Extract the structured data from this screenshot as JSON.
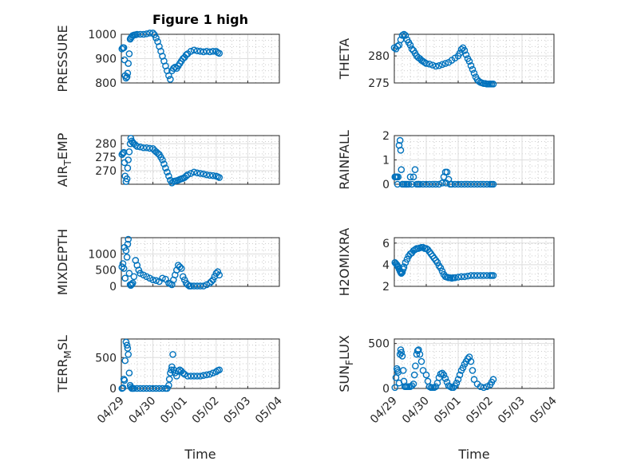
{
  "figure": {
    "title": "Figure 1 high",
    "marker_color": "#0072BD",
    "grid": "major and minor",
    "x_axis_label": "Time",
    "x_ticks": [
      "04/29",
      "04/30",
      "05/01",
      "05/02",
      "05/03",
      "05/04"
    ]
  },
  "chart_data": [
    {
      "id": "pressure",
      "type": "scatter",
      "ylabel": "PRESSURE",
      "ylim": [
        800,
        1000
      ],
      "yticks": [
        {
          "v": 800,
          "label": "800"
        },
        {
          "v": 900,
          "label": "900"
        },
        {
          "v": 1000,
          "label": "1000"
        }
      ],
      "x": [
        0.02,
        0.05,
        0.08,
        0.1,
        0.12,
        0.15,
        0.18,
        0.2,
        0.22,
        0.25,
        0.28,
        0.3,
        0.33,
        0.36,
        0.4,
        0.45,
        0.5,
        0.6,
        0.7,
        0.8,
        0.9,
        1.0,
        1.05,
        1.1,
        1.15,
        1.2,
        1.25,
        1.3,
        1.35,
        1.4,
        1.45,
        1.5,
        1.55,
        1.6,
        1.65,
        1.7,
        1.75,
        1.8,
        1.85,
        1.9,
        1.95,
        2.0,
        2.05,
        2.1,
        2.2,
        2.3,
        2.4,
        2.5,
        2.6,
        2.7,
        2.8,
        2.9,
        3.0,
        3.05,
        3.1
      ],
      "y": [
        940,
        945,
        945,
        895,
        830,
        820,
        825,
        840,
        880,
        920,
        980,
        985,
        990,
        995,
        997,
        998,
        1000,
        1000,
        1000,
        1002,
        1005,
        1005,
        998,
        985,
        970,
        950,
        930,
        910,
        890,
        870,
        850,
        830,
        815,
        850,
        860,
        865,
        860,
        870,
        880,
        890,
        900,
        905,
        915,
        920,
        930,
        935,
        932,
        930,
        928,
        930,
        928,
        930,
        930,
        925,
        922
      ]
    },
    {
      "id": "theta",
      "type": "scatter",
      "ylabel": "THETA",
      "ylim": [
        275,
        284
      ],
      "yticks": [
        {
          "v": 275,
          "label": "275"
        },
        {
          "v": 280,
          "label": "280"
        }
      ],
      "x": [
        0.0,
        0.05,
        0.1,
        0.15,
        0.2,
        0.25,
        0.3,
        0.35,
        0.4,
        0.45,
        0.5,
        0.55,
        0.6,
        0.65,
        0.7,
        0.75,
        0.8,
        0.85,
        0.9,
        0.95,
        1.0,
        1.1,
        1.2,
        1.3,
        1.4,
        1.5,
        1.6,
        1.7,
        1.8,
        1.9,
        2.0,
        2.05,
        2.1,
        2.15,
        2.2,
        2.25,
        2.3,
        2.35,
        2.4,
        2.45,
        2.5,
        2.55,
        2.6,
        2.65,
        2.7,
        2.75,
        2.8,
        2.85,
        2.9,
        2.95,
        3.0,
        3.05,
        3.1
      ],
      "y": [
        281.5,
        281.3,
        281.8,
        282,
        283,
        283.8,
        284,
        283.8,
        283,
        282.5,
        282,
        281.3,
        281,
        280.5,
        280,
        279.7,
        279.5,
        279.2,
        279,
        278.8,
        278.6,
        278.5,
        278.3,
        278.1,
        278.2,
        278.4,
        278.6,
        278.8,
        279.2,
        279.6,
        280,
        280.5,
        281.2,
        281.5,
        281,
        280.2,
        279.5,
        279,
        278.2,
        277.5,
        276.8,
        276.1,
        275.6,
        275.3,
        275.1,
        275,
        274.9,
        274.9,
        274.8,
        274.8,
        274.8,
        274.8,
        274.8
      ]
    },
    {
      "id": "air_temp",
      "type": "scatter",
      "ylabel": "AIR_TEMP",
      "ylim": [
        265,
        283
      ],
      "yticks": [
        {
          "v": 270,
          "label": "270"
        },
        {
          "v": 275,
          "label": "275"
        },
        {
          "v": 280,
          "label": "280"
        }
      ],
      "x": [
        0.02,
        0.05,
        0.08,
        0.1,
        0.12,
        0.15,
        0.18,
        0.2,
        0.22,
        0.25,
        0.28,
        0.3,
        0.33,
        0.36,
        0.4,
        0.45,
        0.5,
        0.6,
        0.7,
        0.8,
        0.9,
        1.0,
        1.05,
        1.1,
        1.15,
        1.2,
        1.25,
        1.3,
        1.35,
        1.4,
        1.45,
        1.5,
        1.55,
        1.6,
        1.65,
        1.7,
        1.75,
        1.8,
        1.85,
        1.9,
        1.95,
        2.0,
        2.05,
        2.1,
        2.2,
        2.3,
        2.4,
        2.5,
        2.6,
        2.7,
        2.8,
        2.9,
        3.0,
        3.05,
        3.1
      ],
      "y": [
        276,
        276.5,
        276.8,
        273,
        268,
        266,
        267,
        271,
        274,
        277,
        280,
        282,
        281,
        280.5,
        280,
        279.5,
        279,
        278.8,
        278.5,
        278.5,
        278.3,
        278.2,
        277.5,
        277,
        276.5,
        276,
        275,
        274,
        272.5,
        271,
        269.5,
        268,
        266.5,
        265.5,
        266,
        266.2,
        266.3,
        266.5,
        266.8,
        267,
        267.2,
        267.5,
        268,
        268.5,
        269,
        269.5,
        269.2,
        269,
        268.8,
        268.5,
        268.3,
        268.2,
        268,
        267.8,
        267.5
      ]
    },
    {
      "id": "rainfall",
      "type": "scatter",
      "ylabel": "RAINFALL",
      "ylim": [
        0,
        2
      ],
      "yticks": [
        {
          "v": 0,
          "label": "0"
        },
        {
          "v": 1,
          "label": "1"
        },
        {
          "v": 2,
          "label": "2"
        }
      ],
      "x": [
        0.02,
        0.05,
        0.08,
        0.1,
        0.12,
        0.15,
        0.18,
        0.2,
        0.22,
        0.25,
        0.3,
        0.35,
        0.4,
        0.45,
        0.5,
        0.55,
        0.6,
        0.65,
        0.7,
        0.75,
        0.8,
        0.9,
        1.0,
        1.1,
        1.2,
        1.3,
        1.4,
        1.5,
        1.55,
        1.6,
        1.62,
        1.65,
        1.7,
        1.75,
        1.8,
        1.9,
        2.0,
        2.1,
        2.2,
        2.3,
        2.4,
        2.5,
        2.6,
        2.7,
        2.8,
        2.9,
        3.0,
        3.05,
        3.1
      ],
      "y": [
        0.3,
        0.3,
        0.3,
        0,
        0.3,
        1.6,
        1.8,
        1.4,
        0.6,
        0,
        0,
        0,
        0,
        0,
        0.3,
        0,
        0.3,
        0.6,
        0,
        0,
        0,
        0,
        0,
        0,
        0,
        0,
        0,
        0.05,
        0.3,
        0.5,
        0.05,
        0.5,
        0.2,
        0,
        0,
        0,
        0,
        0,
        0,
        0,
        0,
        0,
        0,
        0,
        0,
        0,
        0,
        0,
        0
      ]
    },
    {
      "id": "mixdepth",
      "type": "scatter",
      "ylabel": "MIXDEPTH",
      "ylim": [
        0,
        1500
      ],
      "yticks": [
        {
          "v": 0,
          "label": "0"
        },
        {
          "v": 500,
          "label": "500"
        },
        {
          "v": 1000,
          "label": "1000"
        }
      ],
      "x": [
        0.02,
        0.05,
        0.08,
        0.1,
        0.12,
        0.15,
        0.18,
        0.2,
        0.22,
        0.25,
        0.28,
        0.3,
        0.33,
        0.36,
        0.4,
        0.45,
        0.5,
        0.55,
        0.6,
        0.7,
        0.8,
        0.9,
        1.0,
        1.1,
        1.2,
        1.3,
        1.4,
        1.5,
        1.55,
        1.6,
        1.65,
        1.7,
        1.75,
        1.8,
        1.85,
        1.9,
        1.95,
        2.0,
        2.05,
        2.1,
        2.15,
        2.2,
        2.3,
        2.4,
        2.5,
        2.6,
        2.7,
        2.8,
        2.85,
        2.9,
        2.95,
        3.0,
        3.05,
        3.1
      ],
      "y": [
        600,
        700,
        550,
        1200,
        250,
        1100,
        900,
        1300,
        1450,
        400,
        50,
        30,
        60,
        100,
        300,
        800,
        650,
        500,
        400,
        350,
        300,
        250,
        200,
        180,
        150,
        250,
        220,
        100,
        80,
        50,
        200,
        350,
        500,
        650,
        600,
        550,
        300,
        200,
        100,
        50,
        10,
        10,
        10,
        10,
        10,
        10,
        50,
        100,
        150,
        200,
        300,
        400,
        450,
        350
      ]
    },
    {
      "id": "h2omixra",
      "type": "scatter",
      "ylabel": "H2OMIXRA",
      "ylim": [
        2,
        6.5
      ],
      "yticks": [
        {
          "v": 2,
          "label": "2"
        },
        {
          "v": 4,
          "label": "4"
        },
        {
          "v": 6,
          "label": "6"
        }
      ],
      "x": [
        0.02,
        0.05,
        0.08,
        0.1,
        0.12,
        0.15,
        0.18,
        0.2,
        0.22,
        0.25,
        0.28,
        0.3,
        0.35,
        0.4,
        0.45,
        0.5,
        0.55,
        0.6,
        0.65,
        0.7,
        0.75,
        0.8,
        0.85,
        0.9,
        0.95,
        1.0,
        1.05,
        1.1,
        1.15,
        1.2,
        1.25,
        1.3,
        1.35,
        1.4,
        1.45,
        1.5,
        1.55,
        1.6,
        1.65,
        1.7,
        1.75,
        1.8,
        1.85,
        1.9,
        2.0,
        2.1,
        2.2,
        2.3,
        2.4,
        2.5,
        2.6,
        2.7,
        2.8,
        2.9,
        3.0,
        3.05,
        3.1
      ],
      "y": [
        4.2,
        4.1,
        4.0,
        3.9,
        3.8,
        3.6,
        3.4,
        3.3,
        3.2,
        3.3,
        3.6,
        3.8,
        4.2,
        4.5,
        4.8,
        5.0,
        5.1,
        5.3,
        5.4,
        5.5,
        5.5,
        5.55,
        5.6,
        5.6,
        5.5,
        5.5,
        5.4,
        5.2,
        5.0,
        4.8,
        4.6,
        4.4,
        4.2,
        3.9,
        3.7,
        3.4,
        3.1,
        2.9,
        2.85,
        2.8,
        2.8,
        2.75,
        2.8,
        2.8,
        2.85,
        2.9,
        2.9,
        2.95,
        3.0,
        3.0,
        3.0,
        3.0,
        3.0,
        3.0,
        3.0,
        3.0,
        3.0
      ]
    },
    {
      "id": "terr_msl",
      "type": "scatter",
      "ylabel": "TERR_MSL",
      "ylim": [
        0,
        800
      ],
      "yticks": [
        {
          "v": 0,
          "label": "0"
        },
        {
          "v": 500,
          "label": "500"
        }
      ],
      "x": [
        0.02,
        0.05,
        0.08,
        0.1,
        0.12,
        0.15,
        0.18,
        0.2,
        0.22,
        0.25,
        0.28,
        0.3,
        0.33,
        0.36,
        0.4,
        0.5,
        0.6,
        0.7,
        0.8,
        0.9,
        1.0,
        1.1,
        1.2,
        1.3,
        1.4,
        1.45,
        1.5,
        1.52,
        1.55,
        1.58,
        1.6,
        1.63,
        1.66,
        1.7,
        1.75,
        1.8,
        1.85,
        1.9,
        1.95,
        2.0,
        2.1,
        2.2,
        2.3,
        2.4,
        2.5,
        2.6,
        2.7,
        2.8,
        2.9,
        3.0,
        3.05,
        3.1
      ],
      "y": [
        0,
        10,
        150,
        130,
        450,
        750,
        700,
        650,
        550,
        250,
        50,
        20,
        0,
        0,
        0,
        0,
        0,
        0,
        0,
        0,
        0,
        0,
        0,
        0,
        0,
        0,
        50,
        150,
        250,
        300,
        350,
        550,
        300,
        250,
        200,
        280,
        300,
        280,
        250,
        230,
        200,
        200,
        200,
        200,
        200,
        210,
        220,
        230,
        250,
        270,
        290,
        300
      ]
    },
    {
      "id": "sun_flux",
      "type": "scatter",
      "ylabel": "SUN_FLUX",
      "ylim": [
        0,
        550
      ],
      "yticks": [
        {
          "v": 0,
          "label": "0"
        },
        {
          "v": 500,
          "label": "500"
        }
      ],
      "x": [
        0.02,
        0.05,
        0.08,
        0.1,
        0.12,
        0.15,
        0.18,
        0.2,
        0.22,
        0.25,
        0.28,
        0.3,
        0.33,
        0.36,
        0.4,
        0.45,
        0.5,
        0.55,
        0.6,
        0.63,
        0.66,
        0.7,
        0.73,
        0.76,
        0.8,
        0.85,
        0.9,
        1.0,
        1.05,
        1.1,
        1.15,
        1.2,
        1.25,
        1.3,
        1.35,
        1.4,
        1.45,
        1.5,
        1.55,
        1.6,
        1.65,
        1.7,
        1.75,
        1.8,
        1.85,
        1.9,
        1.95,
        2.0,
        2.05,
        2.1,
        2.15,
        2.2,
        2.25,
        2.3,
        2.35,
        2.4,
        2.45,
        2.5,
        2.6,
        2.7,
        2.8,
        2.9,
        3.0,
        3.05,
        3.1
      ],
      "y": [
        10,
        120,
        220,
        200,
        180,
        60,
        380,
        430,
        400,
        360,
        200,
        80,
        20,
        20,
        20,
        20,
        20,
        30,
        50,
        150,
        250,
        380,
        420,
        430,
        380,
        300,
        200,
        150,
        80,
        20,
        10,
        10,
        10,
        20,
        60,
        120,
        160,
        170,
        150,
        110,
        70,
        30,
        20,
        10,
        10,
        30,
        60,
        100,
        150,
        200,
        230,
        270,
        300,
        330,
        350,
        300,
        200,
        100,
        50,
        20,
        10,
        20,
        40,
        70,
        100
      ]
    }
  ]
}
